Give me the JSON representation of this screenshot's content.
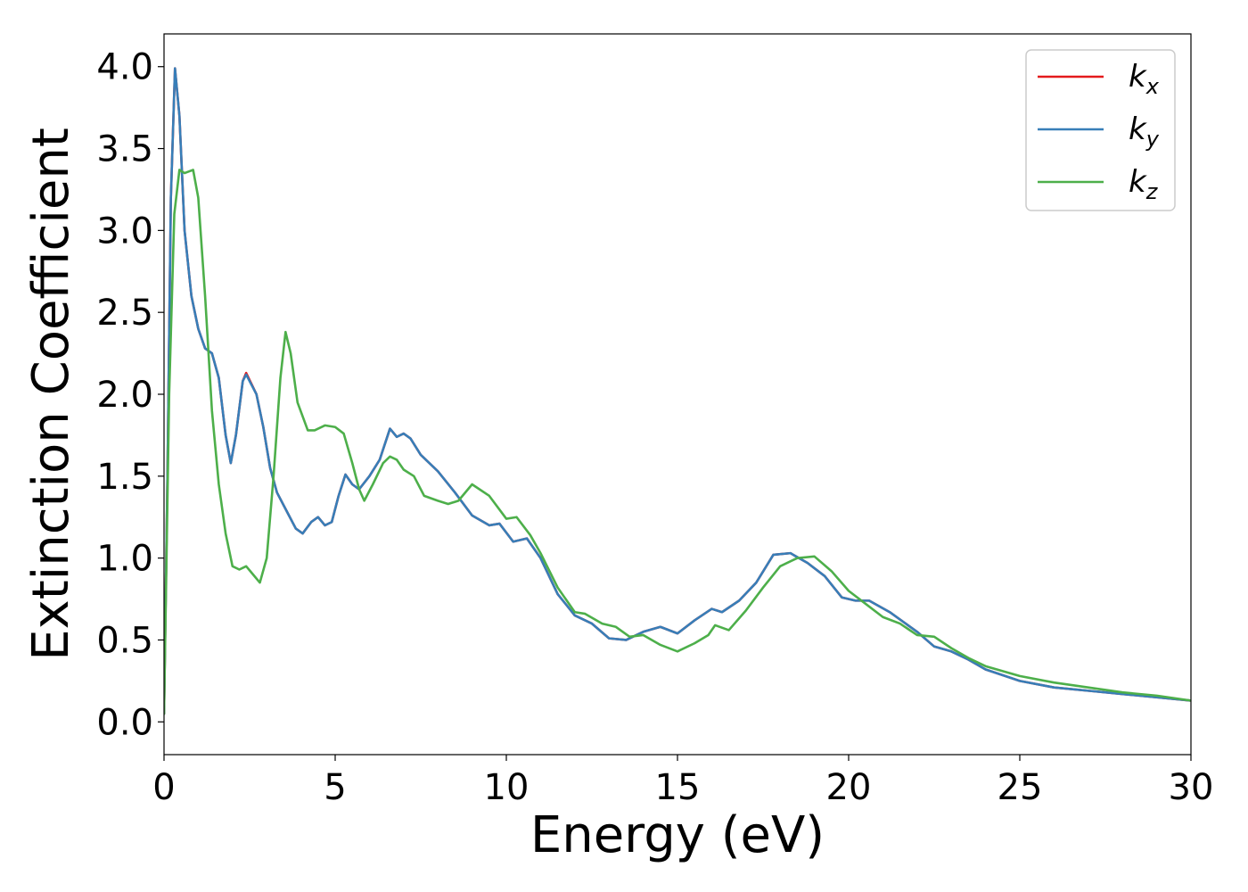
{
  "chart_data": {
    "type": "line",
    "title": "",
    "xlabel": "Energy (eV)",
    "ylabel": "Extinction Coefficient",
    "xlim": [
      0,
      30
    ],
    "ylim": [
      -0.2,
      4.2
    ],
    "xticks": [
      0,
      5,
      10,
      15,
      20,
      25,
      30
    ],
    "xtick_labels": [
      "0",
      "5",
      "10",
      "15",
      "20",
      "25",
      "30"
    ],
    "yticks": [
      0.0,
      0.5,
      1.0,
      1.5,
      2.0,
      2.5,
      3.0,
      3.5,
      4.0
    ],
    "ytick_labels": [
      "0.0",
      "0.5",
      "1.0",
      "1.5",
      "2.0",
      "2.5",
      "3.0",
      "3.5",
      "4.0"
    ],
    "grid": false,
    "legend_position": "top-right",
    "series": [
      {
        "name": "k_x",
        "label_main": "k",
        "label_sub": "x",
        "color": "#e41a1c",
        "points": [
          [
            0,
            0.05
          ],
          [
            0.1,
            1.5
          ],
          [
            0.2,
            3.2
          ],
          [
            0.32,
            3.99
          ],
          [
            0.45,
            3.7
          ],
          [
            0.6,
            3.0
          ],
          [
            0.8,
            2.6
          ],
          [
            1.0,
            2.4
          ],
          [
            1.2,
            2.28
          ],
          [
            1.4,
            2.25
          ],
          [
            1.6,
            2.1
          ],
          [
            1.8,
            1.75
          ],
          [
            1.95,
            1.58
          ],
          [
            2.1,
            1.75
          ],
          [
            2.3,
            2.08
          ],
          [
            2.4,
            2.13
          ],
          [
            2.7,
            2.0
          ],
          [
            2.9,
            1.8
          ],
          [
            3.1,
            1.55
          ],
          [
            3.3,
            1.4
          ],
          [
            3.6,
            1.28
          ],
          [
            3.85,
            1.18
          ],
          [
            4.05,
            1.15
          ],
          [
            4.3,
            1.22
          ],
          [
            4.5,
            1.25
          ],
          [
            4.7,
            1.2
          ],
          [
            4.9,
            1.22
          ],
          [
            5.1,
            1.38
          ],
          [
            5.3,
            1.51
          ],
          [
            5.5,
            1.45
          ],
          [
            5.7,
            1.42
          ],
          [
            6.0,
            1.5
          ],
          [
            6.3,
            1.6
          ],
          [
            6.6,
            1.79
          ],
          [
            6.8,
            1.74
          ],
          [
            7.0,
            1.76
          ],
          [
            7.2,
            1.73
          ],
          [
            7.5,
            1.63
          ],
          [
            8.0,
            1.53
          ],
          [
            8.5,
            1.4
          ],
          [
            9.0,
            1.26
          ],
          [
            9.5,
            1.2
          ],
          [
            9.8,
            1.21
          ],
          [
            10.2,
            1.1
          ],
          [
            10.6,
            1.12
          ],
          [
            11.0,
            1.0
          ],
          [
            11.5,
            0.78
          ],
          [
            12.0,
            0.65
          ],
          [
            12.5,
            0.6
          ],
          [
            13.0,
            0.51
          ],
          [
            13.5,
            0.5
          ],
          [
            14.0,
            0.55
          ],
          [
            14.5,
            0.58
          ],
          [
            15.0,
            0.54
          ],
          [
            15.5,
            0.62
          ],
          [
            16.0,
            0.69
          ],
          [
            16.3,
            0.67
          ],
          [
            16.8,
            0.74
          ],
          [
            17.3,
            0.85
          ],
          [
            17.8,
            1.02
          ],
          [
            18.3,
            1.03
          ],
          [
            18.8,
            0.97
          ],
          [
            19.3,
            0.89
          ],
          [
            19.8,
            0.76
          ],
          [
            20.2,
            0.74
          ],
          [
            20.6,
            0.74
          ],
          [
            21.2,
            0.67
          ],
          [
            22.0,
            0.55
          ],
          [
            22.5,
            0.46
          ],
          [
            23.0,
            0.43
          ],
          [
            23.5,
            0.38
          ],
          [
            24.0,
            0.32
          ],
          [
            25.0,
            0.25
          ],
          [
            26.0,
            0.21
          ],
          [
            27.0,
            0.19
          ],
          [
            28.0,
            0.17
          ],
          [
            29.0,
            0.15
          ],
          [
            30.0,
            0.13
          ]
        ]
      },
      {
        "name": "k_y",
        "label_main": "k",
        "label_sub": "y",
        "color": "#377eb8",
        "points": [
          [
            0,
            0.05
          ],
          [
            0.1,
            1.5
          ],
          [
            0.2,
            3.2
          ],
          [
            0.32,
            3.99
          ],
          [
            0.45,
            3.7
          ],
          [
            0.6,
            3.0
          ],
          [
            0.8,
            2.6
          ],
          [
            1.0,
            2.4
          ],
          [
            1.2,
            2.28
          ],
          [
            1.4,
            2.25
          ],
          [
            1.6,
            2.1
          ],
          [
            1.8,
            1.75
          ],
          [
            1.95,
            1.58
          ],
          [
            2.1,
            1.75
          ],
          [
            2.3,
            2.08
          ],
          [
            2.4,
            2.12
          ],
          [
            2.7,
            2.0
          ],
          [
            2.9,
            1.8
          ],
          [
            3.1,
            1.55
          ],
          [
            3.3,
            1.4
          ],
          [
            3.6,
            1.28
          ],
          [
            3.85,
            1.18
          ],
          [
            4.05,
            1.15
          ],
          [
            4.3,
            1.22
          ],
          [
            4.5,
            1.25
          ],
          [
            4.7,
            1.2
          ],
          [
            4.9,
            1.22
          ],
          [
            5.1,
            1.38
          ],
          [
            5.3,
            1.51
          ],
          [
            5.5,
            1.45
          ],
          [
            5.7,
            1.42
          ],
          [
            6.0,
            1.5
          ],
          [
            6.3,
            1.6
          ],
          [
            6.6,
            1.79
          ],
          [
            6.8,
            1.74
          ],
          [
            7.0,
            1.76
          ],
          [
            7.2,
            1.73
          ],
          [
            7.5,
            1.63
          ],
          [
            8.0,
            1.53
          ],
          [
            8.5,
            1.4
          ],
          [
            9.0,
            1.26
          ],
          [
            9.5,
            1.2
          ],
          [
            9.8,
            1.21
          ],
          [
            10.2,
            1.1
          ],
          [
            10.6,
            1.12
          ],
          [
            11.0,
            1.0
          ],
          [
            11.5,
            0.78
          ],
          [
            12.0,
            0.65
          ],
          [
            12.5,
            0.6
          ],
          [
            13.0,
            0.51
          ],
          [
            13.5,
            0.5
          ],
          [
            14.0,
            0.55
          ],
          [
            14.5,
            0.58
          ],
          [
            15.0,
            0.54
          ],
          [
            15.5,
            0.62
          ],
          [
            16.0,
            0.69
          ],
          [
            16.3,
            0.67
          ],
          [
            16.8,
            0.74
          ],
          [
            17.3,
            0.85
          ],
          [
            17.8,
            1.02
          ],
          [
            18.3,
            1.03
          ],
          [
            18.8,
            0.97
          ],
          [
            19.3,
            0.89
          ],
          [
            19.8,
            0.76
          ],
          [
            20.2,
            0.74
          ],
          [
            20.6,
            0.74
          ],
          [
            21.2,
            0.67
          ],
          [
            22.0,
            0.55
          ],
          [
            22.5,
            0.46
          ],
          [
            23.0,
            0.43
          ],
          [
            23.5,
            0.38
          ],
          [
            24.0,
            0.32
          ],
          [
            25.0,
            0.25
          ],
          [
            26.0,
            0.21
          ],
          [
            27.0,
            0.19
          ],
          [
            28.0,
            0.17
          ],
          [
            29.0,
            0.15
          ],
          [
            30.0,
            0.13
          ]
        ]
      },
      {
        "name": "k_z",
        "label_main": "k",
        "label_sub": "z",
        "color": "#4daf4a",
        "points": [
          [
            0,
            0.05
          ],
          [
            0.15,
            2.0
          ],
          [
            0.3,
            3.1
          ],
          [
            0.45,
            3.37
          ],
          [
            0.6,
            3.35
          ],
          [
            0.85,
            3.37
          ],
          [
            1.0,
            3.2
          ],
          [
            1.2,
            2.6
          ],
          [
            1.4,
            1.9
          ],
          [
            1.6,
            1.45
          ],
          [
            1.8,
            1.15
          ],
          [
            2.0,
            0.95
          ],
          [
            2.2,
            0.93
          ],
          [
            2.4,
            0.95
          ],
          [
            2.6,
            0.9
          ],
          [
            2.8,
            0.85
          ],
          [
            3.0,
            1.0
          ],
          [
            3.2,
            1.5
          ],
          [
            3.4,
            2.1
          ],
          [
            3.55,
            2.38
          ],
          [
            3.7,
            2.25
          ],
          [
            3.9,
            1.95
          ],
          [
            4.2,
            1.78
          ],
          [
            4.4,
            1.78
          ],
          [
            4.7,
            1.81
          ],
          [
            5.0,
            1.8
          ],
          [
            5.25,
            1.76
          ],
          [
            5.5,
            1.58
          ],
          [
            5.7,
            1.42
          ],
          [
            5.85,
            1.35
          ],
          [
            6.1,
            1.45
          ],
          [
            6.4,
            1.58
          ],
          [
            6.6,
            1.62
          ],
          [
            6.8,
            1.6
          ],
          [
            7.0,
            1.54
          ],
          [
            7.3,
            1.5
          ],
          [
            7.6,
            1.38
          ],
          [
            8.0,
            1.35
          ],
          [
            8.3,
            1.33
          ],
          [
            8.6,
            1.35
          ],
          [
            9.0,
            1.45
          ],
          [
            9.5,
            1.38
          ],
          [
            10.0,
            1.24
          ],
          [
            10.3,
            1.25
          ],
          [
            10.7,
            1.14
          ],
          [
            11.0,
            1.03
          ],
          [
            11.5,
            0.82
          ],
          [
            12.0,
            0.67
          ],
          [
            12.3,
            0.66
          ],
          [
            12.8,
            0.6
          ],
          [
            13.2,
            0.58
          ],
          [
            13.6,
            0.52
          ],
          [
            14.0,
            0.53
          ],
          [
            14.5,
            0.47
          ],
          [
            15.0,
            0.43
          ],
          [
            15.5,
            0.48
          ],
          [
            15.9,
            0.53
          ],
          [
            16.1,
            0.59
          ],
          [
            16.5,
            0.56
          ],
          [
            17.0,
            0.68
          ],
          [
            17.5,
            0.82
          ],
          [
            18.0,
            0.95
          ],
          [
            18.5,
            1.0
          ],
          [
            19.0,
            1.01
          ],
          [
            19.5,
            0.92
          ],
          [
            20.0,
            0.8
          ],
          [
            20.5,
            0.72
          ],
          [
            21.0,
            0.64
          ],
          [
            21.5,
            0.6
          ],
          [
            22.0,
            0.53
          ],
          [
            22.5,
            0.52
          ],
          [
            23.0,
            0.45
          ],
          [
            23.5,
            0.39
          ],
          [
            24.0,
            0.34
          ],
          [
            25.0,
            0.28
          ],
          [
            26.0,
            0.24
          ],
          [
            27.0,
            0.21
          ],
          [
            28.0,
            0.18
          ],
          [
            29.0,
            0.16
          ],
          [
            30.0,
            0.13
          ]
        ]
      }
    ]
  }
}
